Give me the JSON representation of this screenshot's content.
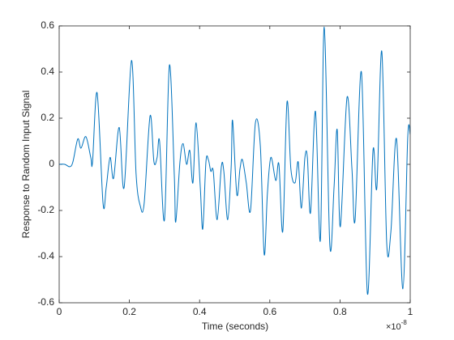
{
  "chart_data": {
    "type": "line",
    "xlabel": "Time (seconds)",
    "ylabel": "Response to Random Input Signal",
    "x_multiplier": {
      "base": "×10",
      "exponent": "-8"
    },
    "xlim": [
      0,
      1
    ],
    "xticks": [
      0,
      0.2,
      0.4,
      0.6,
      0.8,
      1
    ],
    "ylim": [
      -0.6,
      0.6
    ],
    "yticks": [
      -0.6,
      -0.4,
      -0.2,
      0,
      0.2,
      0.4,
      0.6
    ],
    "grid": false,
    "series": [
      {
        "color": "#0072bd",
        "x": [
          0,
          0.016,
          0.03,
          0.039,
          0.053,
          0.062,
          0.076,
          0.09,
          0.095,
          0.108,
          0.125,
          0.134,
          0.145,
          0.155,
          0.171,
          0.185,
          0.206,
          0.219,
          0.231,
          0.242,
          0.259,
          0.27,
          0.279,
          0.286,
          0.3,
          0.314,
          0.328,
          0.332,
          0.344,
          0.353,
          0.363,
          0.372,
          0.381,
          0.39,
          0.402,
          0.409,
          0.418,
          0.425,
          0.432,
          0.439,
          0.45,
          0.462,
          0.469,
          0.48,
          0.49,
          0.494,
          0.506,
          0.515,
          0.522,
          0.533,
          0.545,
          0.559,
          0.573,
          0.584,
          0.593,
          0.603,
          0.617,
          0.626,
          0.637,
          0.649,
          0.66,
          0.672,
          0.681,
          0.69,
          0.7,
          0.707,
          0.716,
          0.73,
          0.744,
          0.755,
          0.771,
          0.783,
          0.792,
          0.801,
          0.82,
          0.834,
          0.843,
          0.861,
          0.878,
          0.894,
          0.905,
          0.919,
          0.933,
          0.945,
          0.961,
          0.979,
          0.993,
          1
        ],
        "values": [
          0,
          0,
          -0.01,
          0.01,
          0.11,
          0.07,
          0.12,
          0.03,
          0.01,
          0.31,
          -0.17,
          -0.1,
          0.03,
          -0.06,
          0.16,
          -0.1,
          0.45,
          -0.04,
          -0.18,
          -0.17,
          0.21,
          0.01,
          0.03,
          0.1,
          -0.24,
          0.43,
          -0.05,
          -0.25,
          0.01,
          0.09,
          0,
          0.06,
          -0.08,
          0.18,
          -0.1,
          -0.28,
          0.01,
          0.02,
          -0.03,
          -0.03,
          -0.24,
          -0.01,
          -0.03,
          -0.24,
          -0.01,
          0.19,
          -0.13,
          -0.02,
          0.02,
          -0.08,
          -0.2,
          0.18,
          0.08,
          -0.39,
          -0.13,
          0.03,
          -0.07,
          0,
          -0.29,
          0.27,
          -0.02,
          -0.08,
          0.01,
          -0.19,
          0.03,
          0.03,
          -0.21,
          0.23,
          -0.33,
          0.595,
          -0.35,
          -0.1,
          0.15,
          -0.27,
          0.29,
          -0.02,
          -0.24,
          0.4,
          -0.56,
          0.06,
          -0.1,
          0.49,
          -0.34,
          -0.29,
          0.11,
          -0.54,
          0.12,
          0.13
        ]
      }
    ]
  }
}
